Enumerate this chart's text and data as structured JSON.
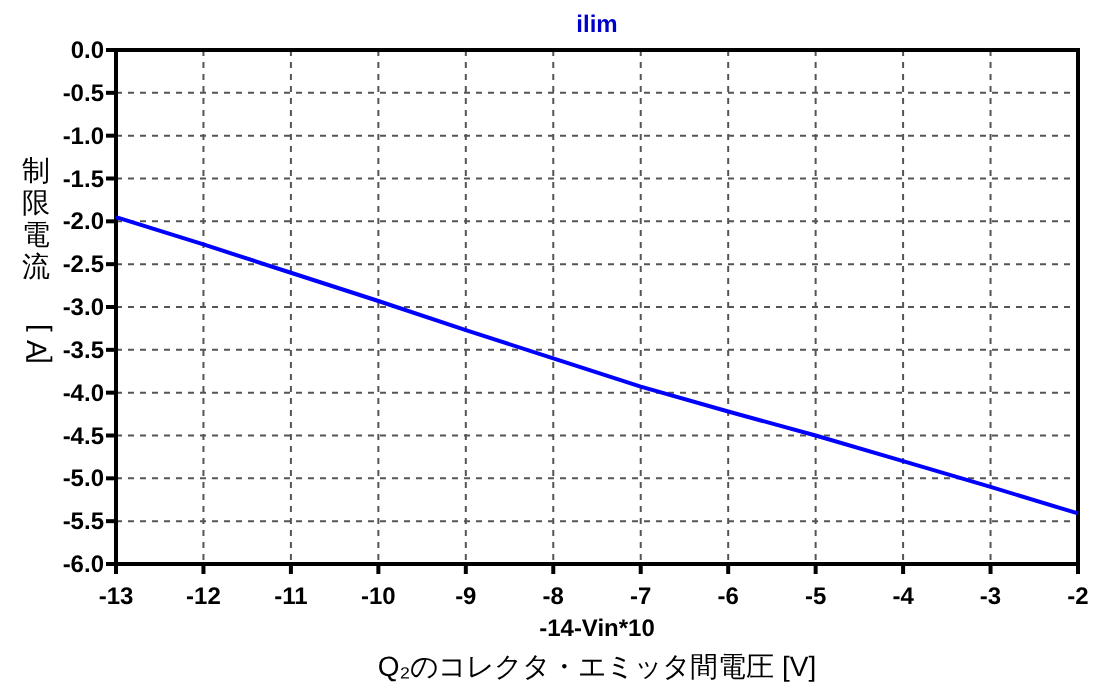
{
  "chart_data": {
    "type": "line",
    "title": "ilim",
    "xlabel": "-14-Vin*10",
    "ylabel": "制限電流 [A]",
    "annotations": [
      "Q₂のコレクタ・エミッタ間電圧 [V]"
    ],
    "x": [
      -13,
      -12,
      -11,
      -10,
      -9,
      -8,
      -7,
      -6,
      -5,
      -4,
      -3,
      -2
    ],
    "series": [
      {
        "color": "#0000ff",
        "values": [
          -1.95,
          -2.27,
          -2.6,
          -2.93,
          -3.27,
          -3.6,
          -3.93,
          -4.22,
          -4.5,
          -4.8,
          -5.1,
          -5.41
        ]
      }
    ],
    "xlim": [
      -13,
      -2
    ],
    "ylim": [
      -6,
      0
    ],
    "xticks": [
      -13,
      -12,
      -11,
      -10,
      -9,
      -8,
      -7,
      -6,
      -5,
      -4,
      -3,
      -2
    ],
    "yticks": [
      {
        "value": -6,
        "label": "-6.0"
      },
      {
        "value": -5.5,
        "label": "-5.5"
      },
      {
        "value": -5,
        "label": "-5.0"
      },
      {
        "value": -4.5,
        "label": "-4.5"
      },
      {
        "value": -4,
        "label": "-4.0"
      },
      {
        "value": -3.5,
        "label": "-3.5"
      },
      {
        "value": -3,
        "label": "-3.0"
      },
      {
        "value": -2.5,
        "label": "-2.5"
      },
      {
        "value": -2,
        "label": "-2.0"
      },
      {
        "value": -1.5,
        "label": "-1.5"
      },
      {
        "value": -1,
        "label": "-1.0"
      },
      {
        "value": -0.5,
        "label": "-0.5"
      },
      {
        "value": 0,
        "label": "0.0"
      }
    ],
    "grid": true
  }
}
